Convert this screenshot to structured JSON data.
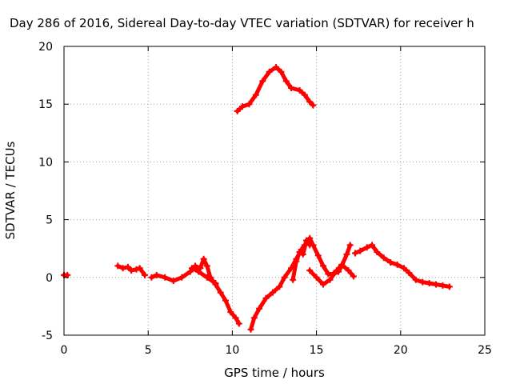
{
  "chart_data": {
    "type": "scatter",
    "title": "Day 286 of 2016, Sidereal Day-to-day VTEC variation (SDTVAR) for receiver h",
    "xlabel": "GPS time / hours",
    "ylabel": "SDTVAR / TECUs",
    "xlim": [
      0,
      25
    ],
    "ylim": [
      -5,
      20
    ],
    "xticks": [
      "0",
      "5",
      "10",
      "15",
      "20",
      "25"
    ],
    "yticks": [
      "-5",
      "0",
      "5",
      "10",
      "15",
      "20"
    ],
    "grid": true,
    "marker": "plus",
    "color": "#ff0000",
    "series": [
      {
        "points": [
          [
            0.0,
            0.2
          ],
          [
            0.2,
            0.2
          ]
        ]
      },
      {
        "points": [
          [
            3.2,
            1.0
          ],
          [
            3.5,
            0.8
          ],
          [
            3.8,
            0.9
          ],
          [
            4.0,
            0.6
          ],
          [
            4.3,
            0.7
          ],
          [
            4.5,
            0.8
          ],
          [
            4.8,
            0.2
          ]
        ]
      },
      {
        "points": [
          [
            5.2,
            0.0
          ],
          [
            5.5,
            0.2
          ],
          [
            6.0,
            0.0
          ],
          [
            6.5,
            -0.3
          ],
          [
            7.0,
            0.0
          ],
          [
            7.5,
            0.5
          ],
          [
            7.8,
            1.0
          ],
          [
            8.1,
            0.8
          ],
          [
            8.3,
            1.6
          ],
          [
            8.5,
            1.0
          ],
          [
            8.7,
            0.0
          ],
          [
            9.0,
            -0.6
          ],
          [
            9.3,
            -1.3
          ],
          [
            9.6,
            -2.0
          ],
          [
            9.9,
            -3.0
          ],
          [
            10.2,
            -3.5
          ],
          [
            10.4,
            -4.0
          ]
        ]
      },
      {
        "points": [
          [
            7.6,
            0.8
          ],
          [
            8.0,
            0.5
          ],
          [
            8.5,
            0.0
          ],
          [
            9.0,
            -0.5
          ]
        ]
      },
      {
        "points": [
          [
            10.3,
            14.4
          ],
          [
            10.6,
            14.8
          ],
          [
            11.0,
            15.0
          ],
          [
            11.4,
            15.8
          ],
          [
            11.8,
            17.0
          ],
          [
            12.2,
            17.8
          ],
          [
            12.6,
            18.2
          ],
          [
            12.9,
            17.8
          ],
          [
            13.2,
            17.0
          ],
          [
            13.5,
            16.4
          ],
          [
            14.0,
            16.2
          ],
          [
            14.3,
            15.8
          ],
          [
            14.6,
            15.2
          ],
          [
            14.8,
            14.9
          ]
        ]
      },
      {
        "points": [
          [
            11.1,
            -4.5
          ],
          [
            11.3,
            -3.5
          ],
          [
            11.6,
            -2.7
          ],
          [
            12.0,
            -1.8
          ],
          [
            12.4,
            -1.3
          ],
          [
            12.8,
            -0.8
          ],
          [
            13.1,
            0.0
          ],
          [
            13.5,
            0.8
          ],
          [
            13.8,
            1.6
          ],
          [
            14.1,
            2.4
          ],
          [
            14.3,
            2.8
          ],
          [
            14.6,
            3.4
          ],
          [
            14.8,
            2.8
          ],
          [
            15.1,
            1.9
          ],
          [
            15.4,
            1.0
          ],
          [
            15.7,
            0.3
          ],
          [
            16.0,
            0.3
          ],
          [
            16.3,
            0.5
          ],
          [
            16.5,
            1.0
          ],
          [
            16.8,
            2.0
          ],
          [
            17.0,
            2.8
          ]
        ]
      },
      {
        "points": [
          [
            13.6,
            -0.2
          ],
          [
            13.8,
            1.4
          ],
          [
            14.0,
            2.2
          ],
          [
            14.2,
            2.0
          ],
          [
            14.4,
            3.2
          ],
          [
            14.6,
            2.8
          ]
        ]
      },
      {
        "points": [
          [
            14.6,
            0.6
          ],
          [
            15.0,
            0.0
          ],
          [
            15.4,
            -0.6
          ],
          [
            15.8,
            -0.2
          ],
          [
            16.2,
            0.6
          ],
          [
            16.5,
            1.1
          ],
          [
            16.9,
            0.6
          ],
          [
            17.2,
            0.1
          ]
        ]
      },
      {
        "points": [
          [
            17.3,
            2.1
          ],
          [
            17.6,
            2.3
          ],
          [
            18.0,
            2.6
          ],
          [
            18.3,
            2.8
          ],
          [
            18.6,
            2.2
          ],
          [
            19.0,
            1.7
          ],
          [
            19.4,
            1.3
          ],
          [
            19.8,
            1.1
          ],
          [
            20.2,
            0.8
          ],
          [
            20.5,
            0.4
          ],
          [
            20.9,
            -0.2
          ],
          [
            21.3,
            -0.4
          ],
          [
            21.7,
            -0.5
          ],
          [
            22.1,
            -0.6
          ],
          [
            22.5,
            -0.7
          ],
          [
            22.9,
            -0.8
          ]
        ]
      }
    ]
  }
}
